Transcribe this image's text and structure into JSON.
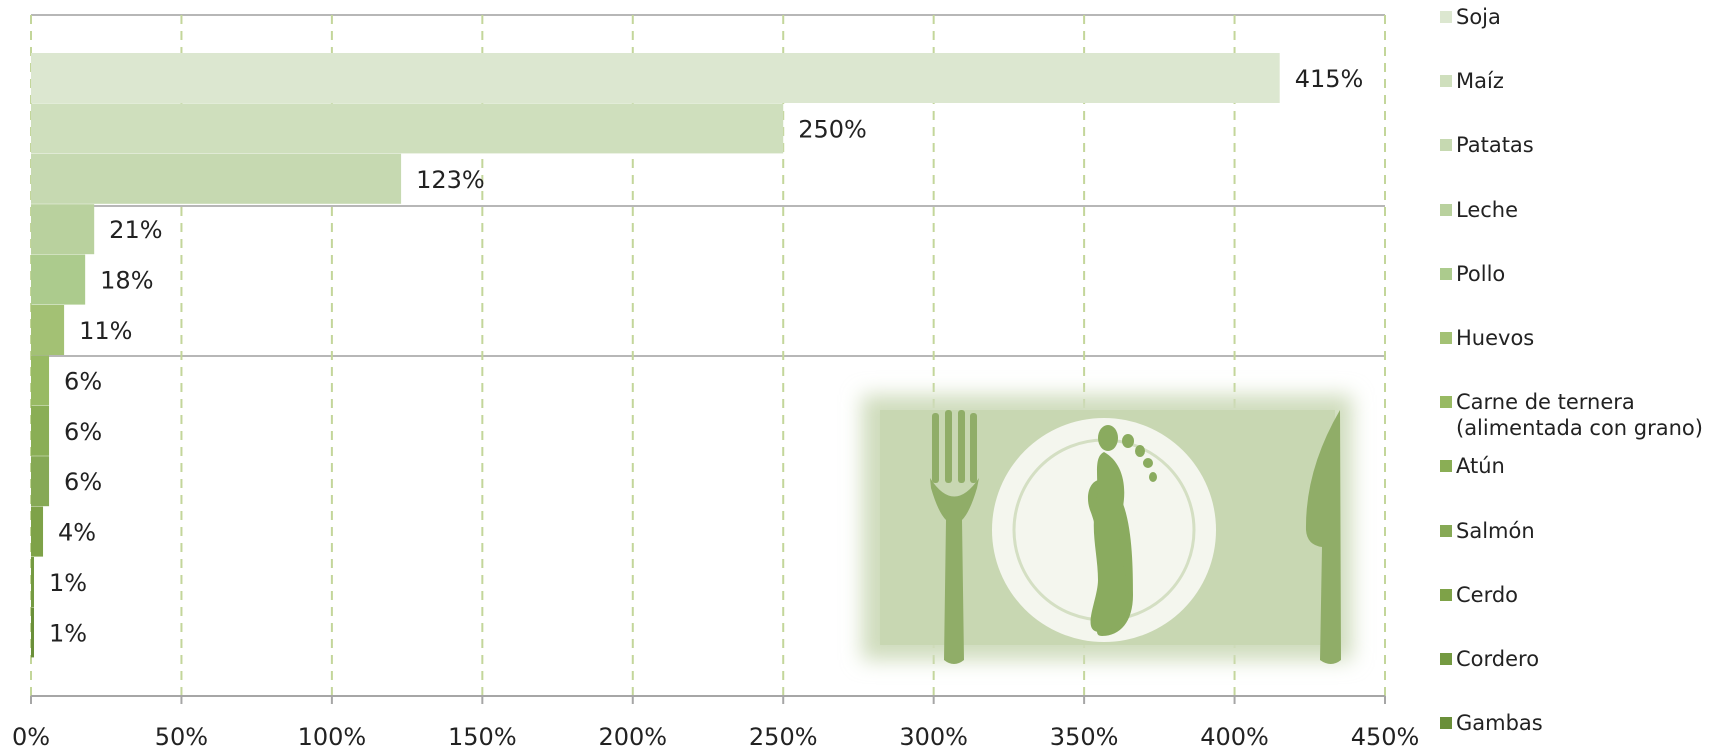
{
  "chart_data": {
    "type": "bar",
    "orientation": "horizontal",
    "categories": [
      "Soja",
      "Maíz",
      "Patatas",
      "Leche",
      "Pollo",
      "Huevos",
      "Carne de ternera\n(alimentada con grano)",
      "Atún",
      "Salmón",
      "Cerdo",
      "Cordero",
      "Gambas"
    ],
    "values": [
      415,
      250,
      123,
      21,
      18,
      11,
      6,
      6,
      6,
      4,
      1,
      1
    ],
    "data_labels": [
      "415%",
      "250%",
      "123%",
      "21%",
      "18%",
      "11%",
      "6%",
      "6%",
      "6%",
      "4%",
      "1%",
      "1%"
    ],
    "colors": [
      "#dce7d0",
      "#cfdfbd",
      "#c6d9b1",
      "#b9d19e",
      "#accb8d",
      "#a3c174",
      "#98ba63",
      "#8aae55",
      "#86a955",
      "#7ea248",
      "#749a41",
      "#6a8f39"
    ],
    "xlim": [
      0,
      450
    ],
    "xticks": [
      0,
      50,
      100,
      150,
      200,
      250,
      300,
      350,
      400,
      450
    ],
    "xtick_labels": [
      "0%",
      "50%",
      "100%",
      "150%",
      "200%",
      "250%",
      "300%",
      "350%",
      "400%",
      "450%"
    ],
    "grid": "vertical dashed",
    "legend_position": "right",
    "title": "",
    "xlabel": "",
    "ylabel": ""
  }
}
